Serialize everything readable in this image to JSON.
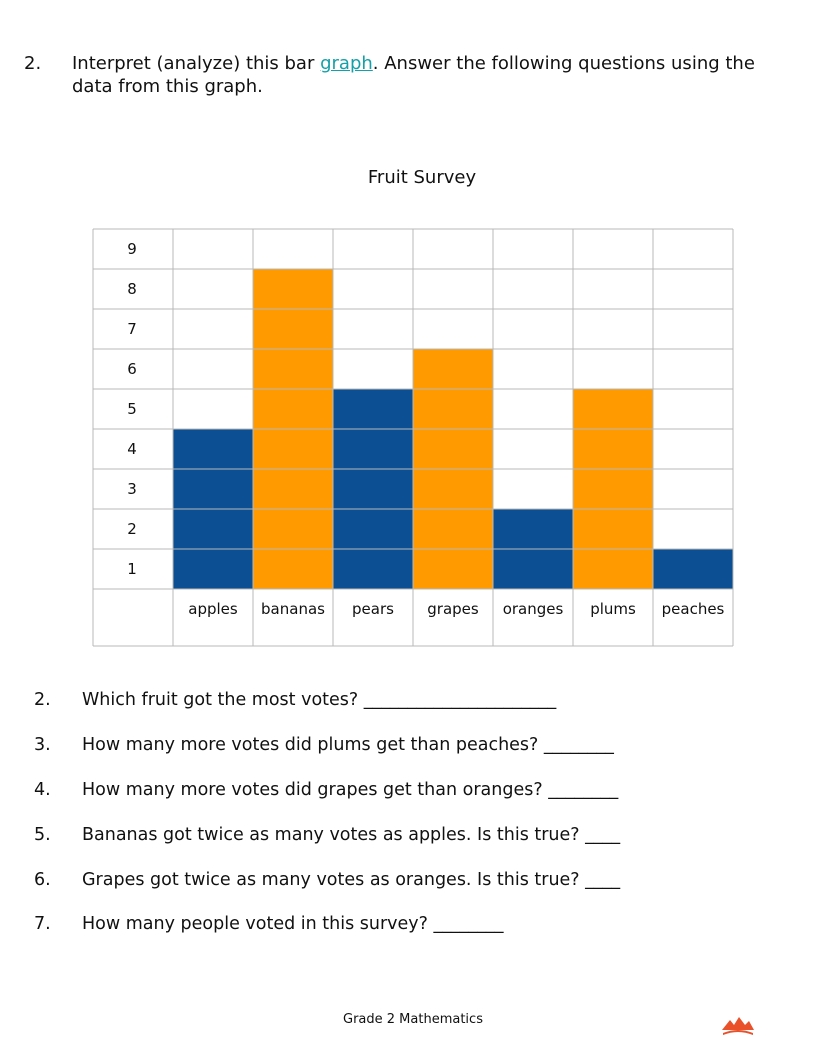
{
  "intro": {
    "number": "2.",
    "text_before": "Interpret (analyze) this bar ",
    "link_text": "graph",
    "text_after": ".  Answer the following questions using the data from this graph.",
    "link_color": "#14a0a8"
  },
  "chart_data": {
    "type": "bar",
    "title": "Fruit Survey",
    "categories": [
      "apples",
      "bananas",
      "pears",
      "grapes",
      "oranges",
      "plums",
      "peaches"
    ],
    "values": [
      4,
      8,
      5,
      6,
      2,
      5,
      1
    ],
    "y_ticks": [
      "1",
      "2",
      "3",
      "4",
      "5",
      "6",
      "7",
      "8",
      "9"
    ],
    "ylim": [
      0,
      9
    ],
    "grid": true,
    "bar_colors": [
      "#0c4f93",
      "#ff9a00",
      "#0c4f93",
      "#ff9a00",
      "#0c4f93",
      "#ff9a00",
      "#0c4f93"
    ]
  },
  "questions": [
    {
      "number": "2.",
      "text": "Which fruit got the most votes? ______________________"
    },
    {
      "number": "3.",
      "text": "How many more votes did plums get than peaches? ________"
    },
    {
      "number": "4.",
      "text": "How many more votes did grapes get than oranges? ________"
    },
    {
      "number": "5.",
      "text": "Bananas got twice as many votes as apples.  Is this true? ____"
    },
    {
      "number": "6.",
      "text": "Grapes got twice as many votes as oranges.  Is this true? ____"
    },
    {
      "number": "7.",
      "text": "How many people voted in this survey? ________"
    }
  ],
  "footer": {
    "text": "Grade 2 Mathematics",
    "logo_icon": "mountain-logo-icon",
    "logo_color": "#e8512a"
  }
}
